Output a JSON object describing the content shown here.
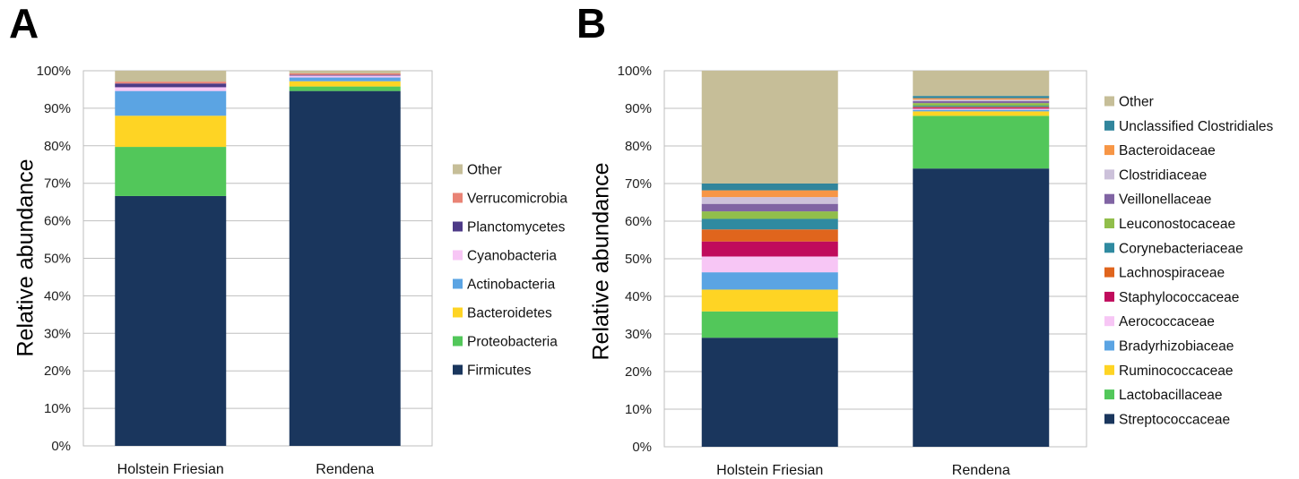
{
  "chart_data": [
    {
      "panel_label": "A",
      "type": "bar",
      "stacked": true,
      "percent": true,
      "ylabel": "Relative abundance",
      "ylim": [
        0,
        100
      ],
      "yticks": [
        "0%",
        "10%",
        "20%",
        "30%",
        "40%",
        "50%",
        "60%",
        "70%",
        "80%",
        "90%",
        "100%"
      ],
      "categories": [
        "Holstein Friesian",
        "Rendena"
      ],
      "legend_position": "right",
      "series": [
        {
          "name": "Firmicutes",
          "color": "#1a365d",
          "values": [
            66.6,
            94.6
          ]
        },
        {
          "name": "Proteobacteria",
          "color": "#52c75a",
          "values": [
            13.1,
            1.2
          ]
        },
        {
          "name": "Bacteroidetes",
          "color": "#fed424",
          "values": [
            8.3,
            1.4
          ]
        },
        {
          "name": "Actinobacteria",
          "color": "#5ba4e3",
          "values": [
            6.6,
            1.0
          ]
        },
        {
          "name": "Cyanobacteria",
          "color": "#f7c6f5",
          "values": [
            1.0,
            0.5
          ]
        },
        {
          "name": "Planctomycetes",
          "color": "#4d3a87",
          "values": [
            1.0,
            0.2
          ]
        },
        {
          "name": "Verrucomicrobia",
          "color": "#e98375",
          "values": [
            0.5,
            0.4
          ]
        },
        {
          "name": "Other",
          "color": "#c6be98",
          "values": [
            2.9,
            0.7
          ]
        }
      ]
    },
    {
      "panel_label": "B",
      "type": "bar",
      "stacked": true,
      "percent": true,
      "ylabel": "Relative abundance",
      "ylim": [
        0,
        100
      ],
      "yticks": [
        "0%",
        "10%",
        "20%",
        "30%",
        "40%",
        "50%",
        "60%",
        "70%",
        "80%",
        "90%",
        "100%"
      ],
      "categories": [
        "Holstein Friesian",
        "Rendena"
      ],
      "legend_position": "right",
      "series": [
        {
          "name": "Streptococcaceae",
          "color": "#1a365d",
          "values": [
            29.0,
            74.0
          ]
        },
        {
          "name": "Lactobacillaceae",
          "color": "#52c75a",
          "values": [
            7.0,
            14.0
          ]
        },
        {
          "name": "Ruminococcaceae",
          "color": "#fed424",
          "values": [
            5.8,
            1.2
          ]
        },
        {
          "name": "Bradyrhizobiaceae",
          "color": "#5ba4e3",
          "values": [
            4.6,
            0.4
          ]
        },
        {
          "name": "Aerococcaceae",
          "color": "#f7c6f5",
          "values": [
            4.2,
            0.3
          ]
        },
        {
          "name": "Staphylococcaceae",
          "color": "#c00b5c",
          "values": [
            4.0,
            0.3
          ]
        },
        {
          "name": "Lachnospiraceae",
          "color": "#e0651d",
          "values": [
            3.2,
            0.2
          ]
        },
        {
          "name": "Corynebacteriaceae",
          "color": "#2f8aa0",
          "values": [
            2.8,
            0.3
          ]
        },
        {
          "name": "Leuconostocaceae",
          "color": "#91be4b",
          "values": [
            2.0,
            0.7
          ]
        },
        {
          "name": "Veillonellaceae",
          "color": "#8064a3",
          "values": [
            2.0,
            0.5
          ]
        },
        {
          "name": "Clostridiaceae",
          "color": "#ccc1da",
          "values": [
            1.8,
            0.4
          ]
        },
        {
          "name": "Bacteroidaceae",
          "color": "#f79646",
          "values": [
            1.8,
            0.4
          ]
        },
        {
          "name": "Unclassified Clostridiales",
          "color": "#31859c",
          "values": [
            1.8,
            0.6
          ]
        },
        {
          "name": "Other",
          "color": "#c6be98",
          "values": [
            30.0,
            6.7
          ]
        }
      ]
    }
  ]
}
